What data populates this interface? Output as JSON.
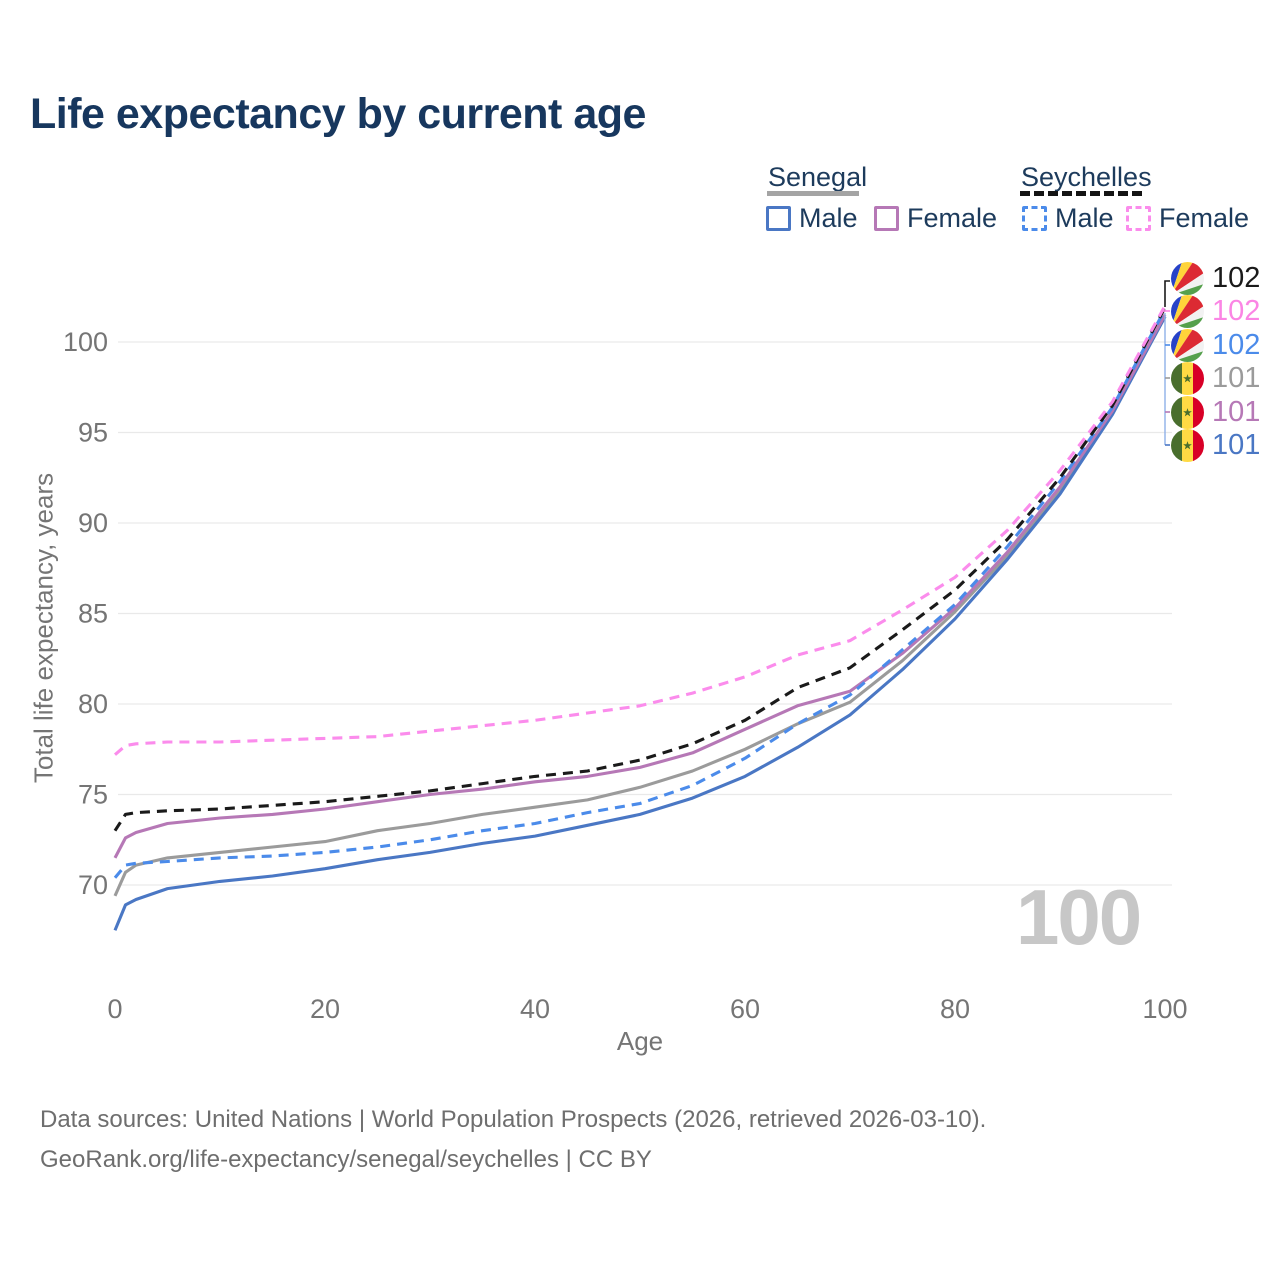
{
  "title": "Life expectancy by current age",
  "legend": {
    "groups": [
      {
        "name": "Senegal",
        "underline_style": "solid",
        "underline_color": "#a4a4a4",
        "items": [
          {
            "label": "Male",
            "color": "#4a77c4",
            "style": "solid"
          },
          {
            "label": "Female",
            "color": "#b678b6",
            "style": "solid"
          }
        ]
      },
      {
        "name": "Seychelles",
        "underline_style": "dashed",
        "underline_color": "#141414",
        "items": [
          {
            "label": "Male",
            "color": "#4b8bea",
            "style": "dashed"
          },
          {
            "label": "Female",
            "color": "#fb8cec",
            "style": "dashed"
          }
        ]
      }
    ]
  },
  "y_axis": {
    "label": "Total life expectancy, years",
    "ticks": [
      70,
      75,
      80,
      85,
      90,
      95,
      100
    ]
  },
  "x_axis": {
    "label": "Age",
    "ticks": [
      0,
      20,
      40,
      60,
      80,
      100
    ]
  },
  "end_labels": [
    {
      "value": "102",
      "color": "#1a1a1a",
      "flag": "seychelles",
      "series": "Seychelles (both sexes)"
    },
    {
      "value": "102",
      "color": "#fb85e4",
      "flag": "seychelles",
      "series": "Seychelles Female"
    },
    {
      "value": "102",
      "color": "#4b8bea",
      "flag": "seychelles",
      "series": "Seychelles Male"
    },
    {
      "value": "101",
      "color": "#9b9b9b",
      "flag": "senegal",
      "series": "Senegal (both sexes)"
    },
    {
      "value": "101",
      "color": "#b678b6",
      "flag": "senegal",
      "series": "Senegal Female"
    },
    {
      "value": "101",
      "color": "#4a77c4",
      "flag": "senegal",
      "series": "Senegal Male"
    }
  ],
  "watermark": "100",
  "footer": {
    "line1": "Data sources: United Nations | World Population Prospects (2026, retrieved 2026-03-10).",
    "line2": "GeoRank.org/life-expectancy/senegal/seychelles | CC BY"
  },
  "colors": {
    "title": "#17375e",
    "axis_text": "#757575",
    "gridline": "#e9e9e9",
    "watermark": "#c7c7c7",
    "footer_text": "#6e6e6e"
  },
  "chart_data": {
    "type": "line",
    "title": "Life expectancy by current age",
    "xlabel": "Age",
    "ylabel": "Total life expectancy, years",
    "xlim": [
      0,
      100
    ],
    "ylim": [
      66,
      103
    ],
    "x_ticks": [
      0,
      20,
      40,
      60,
      80,
      100
    ],
    "y_ticks": [
      70,
      75,
      80,
      85,
      90,
      95,
      100
    ],
    "grid": "horizontal",
    "legend_position": "top-right",
    "x": [
      0,
      1,
      2,
      5,
      10,
      15,
      20,
      25,
      30,
      35,
      40,
      45,
      50,
      55,
      60,
      65,
      70,
      75,
      80,
      85,
      90,
      95,
      100
    ],
    "series": [
      {
        "name": "Senegal (both sexes)",
        "country": "Senegal",
        "sex": "Both",
        "style": "solid",
        "color": "#9b9b9b",
        "values": [
          69.4,
          70.7,
          71.1,
          71.5,
          71.8,
          72.1,
          72.4,
          73.0,
          73.4,
          73.9,
          74.3,
          74.7,
          75.4,
          76.3,
          77.5,
          78.9,
          80.1,
          82.4,
          85.1,
          88.2,
          91.8,
          96.1,
          101.4
        ],
        "end_label": "101"
      },
      {
        "name": "Senegal Male",
        "country": "Senegal",
        "sex": "Male",
        "style": "solid",
        "color": "#4a77c4",
        "values": [
          67.5,
          68.9,
          69.2,
          69.8,
          70.2,
          70.5,
          70.9,
          71.4,
          71.8,
          72.3,
          72.7,
          73.3,
          73.9,
          74.8,
          76.0,
          77.6,
          79.4,
          81.9,
          84.7,
          88.0,
          91.6,
          96.0,
          101.4
        ],
        "end_label": "101"
      },
      {
        "name": "Senegal Female",
        "country": "Senegal",
        "sex": "Female",
        "style": "solid",
        "color": "#b678b6",
        "values": [
          71.5,
          72.6,
          72.9,
          73.4,
          73.7,
          73.9,
          74.2,
          74.6,
          75.0,
          75.3,
          75.7,
          76.0,
          76.5,
          77.3,
          78.6,
          79.9,
          80.7,
          82.8,
          85.3,
          88.4,
          92.0,
          96.2,
          101.5
        ],
        "end_label": "101"
      },
      {
        "name": "Seychelles Male",
        "country": "Seychelles",
        "sex": "Male",
        "style": "dashed",
        "color": "#4b8bea",
        "values": [
          70.4,
          71.1,
          71.2,
          71.3,
          71.5,
          71.6,
          71.8,
          72.1,
          72.5,
          73.0,
          73.4,
          74.0,
          74.5,
          75.5,
          77.0,
          78.9,
          80.5,
          83.0,
          85.5,
          88.7,
          92.3,
          96.4,
          101.8
        ],
        "end_label": "102"
      },
      {
        "name": "Seychelles (both sexes)",
        "country": "Seychelles",
        "sex": "Both",
        "style": "dashed",
        "color": "#1a1a1a",
        "values": [
          73.0,
          73.9,
          74.0,
          74.1,
          74.2,
          74.4,
          74.6,
          74.9,
          75.2,
          75.6,
          76.0,
          76.3,
          76.9,
          77.8,
          79.1,
          80.9,
          82.0,
          84.1,
          86.3,
          89.1,
          92.5,
          96.5,
          101.9
        ],
        "end_label": "102"
      },
      {
        "name": "Seychelles Female",
        "country": "Seychelles",
        "sex": "Female",
        "style": "dashed",
        "color": "#fb8cec",
        "values": [
          77.2,
          77.7,
          77.8,
          77.9,
          77.9,
          78.0,
          78.1,
          78.2,
          78.5,
          78.8,
          79.1,
          79.5,
          79.9,
          80.6,
          81.5,
          82.7,
          83.5,
          85.2,
          87.0,
          89.6,
          92.9,
          96.7,
          102.0
        ],
        "end_label": "102"
      }
    ]
  }
}
